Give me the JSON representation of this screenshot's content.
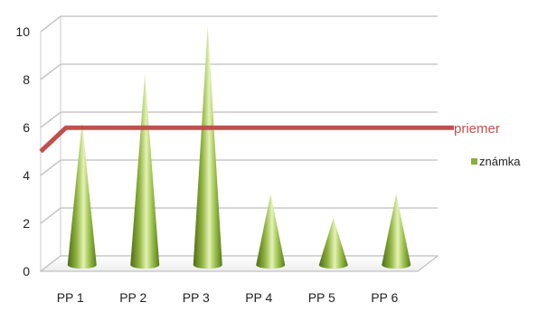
{
  "chart_data": {
    "type": "bar",
    "bar_shape": "cone",
    "categories": [
      "PP 1",
      "PP 2",
      "PP 3",
      "PP 4",
      "PP 5",
      "PP 6"
    ],
    "series": [
      {
        "name": "známka",
        "values": [
          6,
          8,
          10,
          3,
          2,
          3
        ],
        "color": "#8bb03a"
      }
    ],
    "average_line": {
      "label": "priemer",
      "value": 5.8,
      "start_value": 5.0,
      "color": "#c0504d"
    },
    "y_ticks": [
      0,
      2,
      4,
      6,
      8,
      10
    ],
    "ylim": [
      0,
      10
    ],
    "grid": true,
    "legend_position": "right",
    "title": "",
    "xlabel": "",
    "ylabel": ""
  }
}
